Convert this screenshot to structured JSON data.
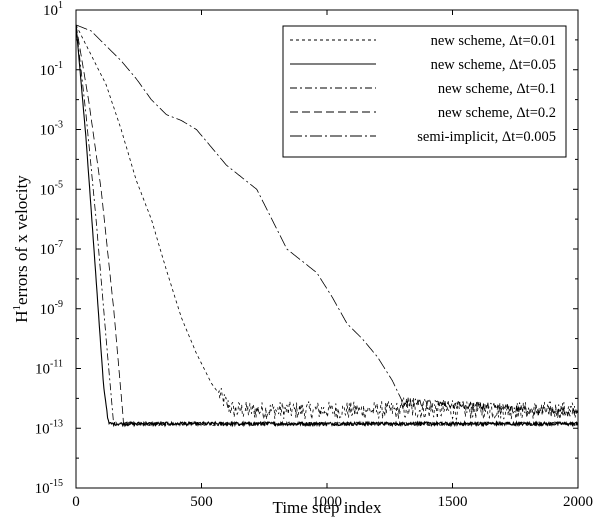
{
  "chart_data": {
    "type": "line",
    "title": "",
    "xlabel": "Time step index",
    "ylabel_prefix": "H",
    "ylabel_superscript": "1",
    "ylabel_suffix": "errors of x velocity",
    "xlim": [
      0,
      2000
    ],
    "ylim_log10": [
      -15,
      1
    ],
    "y_scale": "log",
    "grid": false,
    "legend_position": "top-right",
    "x_ticks": [
      "0",
      "500",
      "1000",
      "1500",
      "2000"
    ],
    "y_tick_exponents": [
      "1",
      "-1",
      "-3",
      "-5",
      "-7",
      "-9",
      "-11",
      "-13",
      "-15"
    ],
    "y_tick_base": "10",
    "series": [
      {
        "name": "new scheme, Δt=0.01",
        "dash": "3,3",
        "color": "#000000",
        "noise_floor_log10": -12.2,
        "noise_amplitude": 0.3,
        "x": [
          0,
          60,
          120,
          180,
          240,
          300,
          360,
          420,
          480,
          540,
          600,
          630,
          2000
        ],
        "log10_y": [
          0.5,
          -0.5,
          -1.5,
          -3.0,
          -4.7,
          -6.0,
          -7.7,
          -9.3,
          -10.5,
          -11.5,
          -12.2,
          -12.4,
          -12.4
        ]
      },
      {
        "name": "new scheme, Δt=0.05",
        "dash": "",
        "color": "#000000",
        "noise_floor_log10": -12.85,
        "noise_amplitude": 0.06,
        "x": [
          0,
          40,
          80,
          110,
          130,
          2000
        ],
        "log10_y": [
          0.5,
          -3.3,
          -8.0,
          -11.6,
          -12.85,
          -12.85
        ]
      },
      {
        "name": "new scheme, Δt=0.1",
        "dash": "7,3,2,3",
        "color": "#000000",
        "noise_floor_log10": -12.85,
        "noise_amplitude": 0.06,
        "x": [
          0,
          40,
          80,
          120,
          150,
          2000
        ],
        "log10_y": [
          0.5,
          -2.5,
          -6.0,
          -10.0,
          -12.85,
          -12.85
        ]
      },
      {
        "name": "new scheme, Δt=0.2",
        "dash": "8,4",
        "color": "#000000",
        "noise_floor_log10": -12.85,
        "noise_amplitude": 0.06,
        "x": [
          0,
          50,
          100,
          150,
          190,
          2000
        ],
        "log10_y": [
          0.5,
          -2.0,
          -5.0,
          -9.0,
          -12.85,
          -12.85
        ]
      },
      {
        "name": "semi-implicit, Δt=0.005",
        "dash": "12,3,2,3",
        "color": "#000000",
        "noise_floor_log10": -12.4,
        "noise_amplitude": 0.15,
        "x": [
          0,
          60,
          120,
          180,
          240,
          300,
          360,
          420,
          480,
          540,
          600,
          660,
          720,
          780,
          840,
          900,
          960,
          1020,
          1080,
          1140,
          1200,
          1260,
          1300,
          2000
        ],
        "log10_y": [
          0.5,
          0.3,
          -0.2,
          -0.7,
          -1.3,
          -2.0,
          -2.5,
          -2.7,
          -3.0,
          -3.6,
          -4.2,
          -4.6,
          -5.0,
          -6.0,
          -7.0,
          -7.4,
          -7.8,
          -8.6,
          -9.5,
          -10.0,
          -10.6,
          -11.4,
          -12.1,
          -12.5
        ]
      }
    ]
  }
}
